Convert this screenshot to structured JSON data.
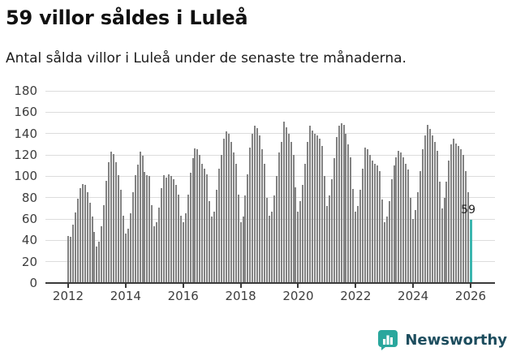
{
  "title": "59 villor såldes i Luleå",
  "subtitle": "Antal sålda villor i Luleå under de senaste tre månaderna.",
  "footer": {
    "brand": "Newsworthy",
    "logo_icon": "bar-chart-bubble-icon"
  },
  "colors": {
    "bar": "#838383",
    "highlight": "#3ab5ae",
    "grid": "#dcdcdc",
    "axis": "#3a3a3a",
    "brand": "#2aa79d",
    "brand_text": "#1d4d5e"
  },
  "chart_data": {
    "type": "bar",
    "title": "59 villor såldes i Luleå",
    "subtitle": "Antal sålda villor i Luleå under de senaste tre månaderna.",
    "x_start": "2012-01",
    "x_frequency": "monthly",
    "ylim": [
      0,
      180
    ],
    "y_ticks": [
      0,
      20,
      40,
      60,
      80,
      100,
      120,
      140,
      160,
      180
    ],
    "x_tick_labels": [
      "2012",
      "2014",
      "2016",
      "2018",
      "2020",
      "2022",
      "2024",
      "2026"
    ],
    "x_tick_start_year": 2012,
    "grid": true,
    "legend": false,
    "highlight": {
      "position": "last",
      "value": 59,
      "label": "59"
    },
    "values": [
      44,
      43,
      55,
      66,
      79,
      89,
      93,
      92,
      85,
      75,
      62,
      48,
      34,
      39,
      53,
      73,
      96,
      113,
      123,
      121,
      113,
      101,
      87,
      63,
      46,
      51,
      65,
      85,
      101,
      111,
      123,
      119,
      104,
      101,
      100,
      73,
      53,
      57,
      71,
      89,
      101,
      99,
      102,
      100,
      97,
      92,
      83,
      63,
      57,
      65,
      83,
      103,
      117,
      126,
      125,
      120,
      112,
      107,
      102,
      77,
      62,
      67,
      87,
      107,
      120,
      135,
      142,
      140,
      132,
      122,
      112,
      83,
      57,
      62,
      82,
      102,
      127,
      140,
      147,
      145,
      138,
      125,
      112,
      80,
      63,
      67,
      82,
      100,
      122,
      132,
      151,
      146,
      140,
      132,
      120,
      90,
      67,
      77,
      92,
      112,
      132,
      147,
      143,
      140,
      138,
      135,
      128,
      100,
      72,
      82,
      97,
      117,
      137,
      147,
      150,
      148,
      140,
      130,
      118,
      88,
      67,
      72,
      87,
      107,
      127,
      125,
      120,
      115,
      112,
      110,
      105,
      78,
      57,
      62,
      77,
      97,
      110,
      118,
      124,
      122,
      118,
      112,
      106,
      80,
      60,
      68,
      85,
      105,
      125,
      138,
      148,
      144,
      138,
      132,
      124,
      95,
      70,
      80,
      95,
      115,
      130,
      135,
      131,
      128,
      125,
      120,
      105,
      85,
      59
    ]
  }
}
